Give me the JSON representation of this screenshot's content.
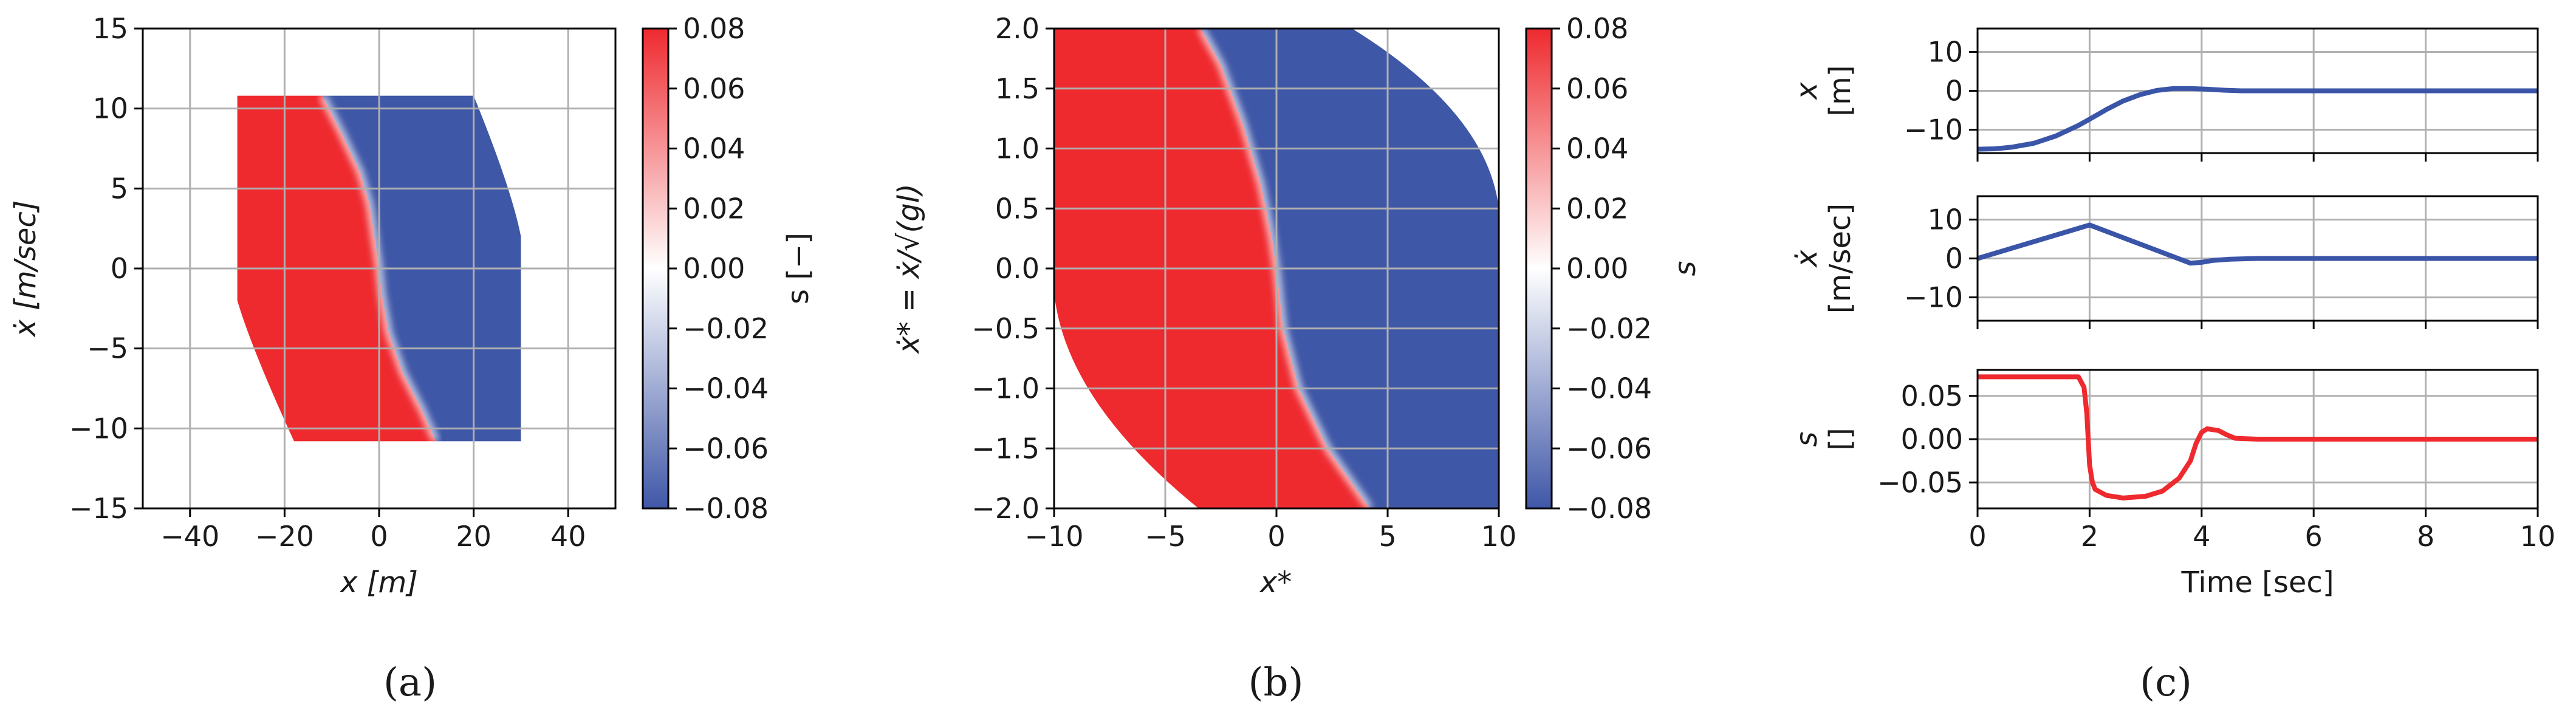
{
  "colors": {
    "red": "#ee2a2f",
    "blue": "#3f57a7",
    "white": "#ffffff",
    "grid": "#b0b0b0",
    "axis": "#000000",
    "line_blue": "#3a55a8",
    "line_red": "#ee2a2f"
  },
  "panel_labels": [
    "(a)",
    "(b)",
    "(c)"
  ],
  "chart_data": [
    {
      "id": "a",
      "type": "heatmap",
      "title": "",
      "xlabel": "x [m]",
      "ylabel": "ẋ [m/sec]",
      "xlim": [
        -50,
        50
      ],
      "ylim": [
        -15,
        15
      ],
      "xticks": [
        -40,
        -20,
        0,
        20,
        40
      ],
      "xtick_labels": [
        "−40",
        "−20",
        "0",
        "20",
        "40"
      ],
      "yticks": [
        -15,
        -10,
        -5,
        0,
        5,
        10,
        15
      ],
      "ytick_labels": [
        "−15",
        "−10",
        "−5",
        "0",
        "5",
        "10",
        "15"
      ],
      "grid": true,
      "domain": {
        "x_min": -30,
        "x_max": 30,
        "v_min": -10.8,
        "v_max": 10.8
      },
      "switching_curve": [
        [
          -12,
          10.8
        ],
        [
          -8,
          8.5
        ],
        [
          -4,
          6.0
        ],
        [
          -2,
          4.0
        ],
        [
          -0.5,
          1.0
        ],
        [
          0,
          0
        ],
        [
          0.5,
          -1.5
        ],
        [
          2,
          -4.0
        ],
        [
          5,
          -6.5
        ],
        [
          9,
          -8.8
        ],
        [
          12,
          -10.8
        ]
      ],
      "colorbar": {
        "label": "s [−]",
        "min": -0.08,
        "max": 0.08,
        "ticks": [
          "0.08",
          "0.06",
          "0.04",
          "0.02",
          "0.00",
          "−0.02",
          "−0.04",
          "−0.06",
          "−0.08"
        ]
      }
    },
    {
      "id": "b",
      "type": "heatmap",
      "title": "",
      "xlabel": "x*",
      "ylabel": "ẋ* = ẋ/√(gl)",
      "xlim": [
        -10,
        10
      ],
      "ylim": [
        -2,
        2
      ],
      "xticks": [
        -10,
        -5,
        0,
        5,
        10
      ],
      "xtick_labels": [
        "−10",
        "−5",
        "0",
        "5",
        "10"
      ],
      "yticks": [
        -2,
        -1.5,
        -1,
        -0.5,
        0,
        0.5,
        1,
        1.5,
        2
      ],
      "ytick_labels": [
        "−2.0",
        "−1.5",
        "−1.0",
        "−0.5",
        "0.0",
        "0.5",
        "1.0",
        "1.5",
        "2.0"
      ],
      "grid": true,
      "switching_curve": [
        [
          -3.4,
          2.0
        ],
        [
          -2.5,
          1.7
        ],
        [
          -1.5,
          1.2
        ],
        [
          -0.7,
          0.7
        ],
        [
          -0.2,
          0.25
        ],
        [
          0,
          0
        ],
        [
          0.3,
          -0.5
        ],
        [
          1.0,
          -1.0
        ],
        [
          2.3,
          -1.5
        ],
        [
          4.2,
          -2.0
        ]
      ],
      "colorbar": {
        "label": "s",
        "min": -0.08,
        "max": 0.08,
        "ticks": [
          "0.08",
          "0.06",
          "0.04",
          "0.02",
          "0.00",
          "−0.02",
          "−0.04",
          "−0.06",
          "−0.08"
        ]
      }
    },
    {
      "id": "c",
      "type": "line",
      "xlabel": "Time [sec]",
      "xlim": [
        0,
        10
      ],
      "xticks": [
        0,
        2,
        4,
        6,
        8,
        10
      ],
      "xtick_labels": [
        "0",
        "2",
        "4",
        "6",
        "8",
        "10"
      ],
      "grid": true,
      "subplots": [
        {
          "ylabel": "x",
          "yunit": "[m]",
          "ylim": [
            -16,
            16
          ],
          "yticks": [
            -10,
            0,
            10
          ],
          "ytick_labels": [
            "−10",
            "0",
            "10"
          ],
          "color": "line_blue",
          "x": [
            0,
            0.3,
            0.6,
            1.0,
            1.4,
            1.8,
            2.0,
            2.3,
            2.6,
            2.9,
            3.2,
            3.5,
            3.8,
            4.1,
            4.4,
            4.7,
            5,
            6,
            7,
            8,
            9,
            10
          ],
          "values": [
            -15,
            -14.9,
            -14.5,
            -13.5,
            -11.6,
            -8.9,
            -7.3,
            -4.8,
            -2.6,
            -1.0,
            0.1,
            0.6,
            0.6,
            0.4,
            0.15,
            0,
            0,
            0,
            0,
            0,
            0,
            0
          ]
        },
        {
          "ylabel": "ẋ",
          "yunit": "[m/sec]",
          "ylim": [
            -16,
            16
          ],
          "yticks": [
            -10,
            0,
            10
          ],
          "ytick_labels": [
            "−10",
            "0",
            "10"
          ],
          "color": "line_blue",
          "x": [
            0,
            2.0,
            3.8,
            4.0,
            4.2,
            4.5,
            5,
            6,
            7,
            8,
            9,
            10
          ],
          "values": [
            0,
            8.6,
            -1.2,
            -1.0,
            -0.5,
            -0.2,
            0,
            0,
            0,
            0,
            0,
            0
          ]
        },
        {
          "ylabel": "s",
          "yunit": "[]",
          "ylim": [
            -0.08,
            0.08
          ],
          "yticks": [
            -0.05,
            0,
            0.05
          ],
          "ytick_labels": [
            "−0.05",
            "0.00",
            "0.05"
          ],
          "color": "line_red",
          "x": [
            0,
            1.8,
            1.9,
            1.95,
            2.0,
            2.05,
            2.1,
            2.3,
            2.6,
            3.0,
            3.3,
            3.6,
            3.8,
            3.9,
            4.0,
            4.1,
            4.3,
            4.45,
            4.6,
            5,
            6,
            7,
            8,
            9,
            10
          ],
          "values": [
            0.072,
            0.072,
            0.06,
            0.03,
            -0.03,
            -0.05,
            -0.058,
            -0.065,
            -0.068,
            -0.066,
            -0.06,
            -0.045,
            -0.025,
            -0.005,
            0.008,
            0.012,
            0.01,
            0.005,
            0.001,
            0,
            0,
            0,
            0,
            0,
            0
          ]
        }
      ]
    }
  ]
}
